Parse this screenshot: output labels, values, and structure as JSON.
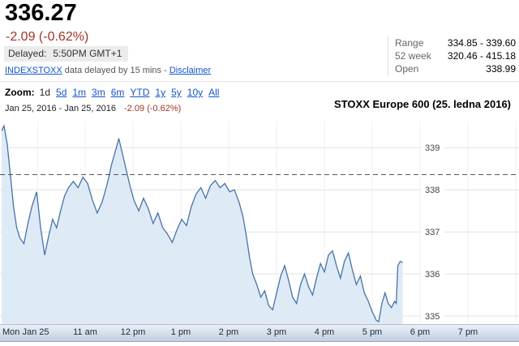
{
  "colors": {
    "negative": "#a23327",
    "link": "#1155cc"
  },
  "header": {
    "price": "336.27",
    "change": "-2.09 (-0.62%)",
    "delayed_label": "Delayed:",
    "delayed_time": "5:50PM GMT+1",
    "exchange_link": "INDEXSTOXX",
    "delay_note": "data delayed by 15 mins -",
    "disclaimer_link": "Disclaimer",
    "stats": [
      {
        "label": "Range",
        "value": "334.85 - 339.60"
      },
      {
        "label": "52 week",
        "value": "320.46 - 415.18"
      },
      {
        "label": "Open",
        "value": "338.99"
      }
    ]
  },
  "toolbar": {
    "zoom_label": "Zoom:",
    "selected": "1d",
    "options": [
      "5d",
      "1m",
      "3m",
      "6m",
      "YTD",
      "1y",
      "5y",
      "10y",
      "All"
    ],
    "date_range": "Jan 25, 2016 - Jan 25, 2016",
    "range_change": "-2.09 (-0.62%)"
  },
  "chart_data": {
    "type": "area",
    "title": "STOXX Europe 600 (25. ledna 2016)",
    "xlabel": "",
    "ylabel": "",
    "last": 336.27,
    "open": 338.99,
    "prev_close": 338.36,
    "day_range": [
      334.85,
      339.6
    ],
    "week52_range": [
      320.46,
      415.18
    ],
    "y_ticks": [
      335,
      336,
      337,
      338,
      339
    ],
    "ylim": [
      334.81,
      339.62
    ],
    "line_color": "#4572a7",
    "fill_color": "#dfeaf7",
    "grid_color": "#e3e3e3",
    "x_unit": "minutes since midnight",
    "axis": {
      "t0": 553,
      "t1": 1204,
      "y_top": 339.62,
      "y_bottom": 334.81
    },
    "day_label": "Mon Jan 25",
    "hour_ticks": [
      {
        "t": 660,
        "label": "11 am"
      },
      {
        "t": 720,
        "label": "12 pm"
      },
      {
        "t": 780,
        "label": "1 pm"
      },
      {
        "t": 840,
        "label": "2 pm"
      },
      {
        "t": 900,
        "label": "3 pm"
      },
      {
        "t": 960,
        "label": "4 pm"
      },
      {
        "t": 1020,
        "label": "5 pm"
      },
      {
        "t": 1080,
        "label": "6 pm"
      },
      {
        "t": 1140,
        "label": "7 pm"
      }
    ],
    "points": [
      [
        555,
        339.4
      ],
      [
        558,
        339.52
      ],
      [
        562,
        339.1
      ],
      [
        566,
        338.35
      ],
      [
        570,
        337.6
      ],
      [
        574,
        337.1
      ],
      [
        578,
        336.85
      ],
      [
        583,
        336.72
      ],
      [
        588,
        337.2
      ],
      [
        593,
        337.6
      ],
      [
        599,
        337.95
      ],
      [
        604,
        337.1
      ],
      [
        609,
        336.45
      ],
      [
        614,
        336.9
      ],
      [
        619,
        337.3
      ],
      [
        624,
        337.1
      ],
      [
        629,
        337.5
      ],
      [
        634,
        337.85
      ],
      [
        639,
        338.05
      ],
      [
        645,
        338.2
      ],
      [
        651,
        338.05
      ],
      [
        657,
        338.3
      ],
      [
        663,
        338.15
      ],
      [
        669,
        337.75
      ],
      [
        675,
        337.45
      ],
      [
        681,
        337.7
      ],
      [
        687,
        338.1
      ],
      [
        693,
        338.6
      ],
      [
        699,
        339.0
      ],
      [
        702,
        339.22
      ],
      [
        706,
        338.9
      ],
      [
        711,
        338.5
      ],
      [
        716,
        338.1
      ],
      [
        721,
        337.75
      ],
      [
        727,
        337.5
      ],
      [
        733,
        337.8
      ],
      [
        739,
        337.55
      ],
      [
        745,
        337.2
      ],
      [
        751,
        337.45
      ],
      [
        757,
        337.1
      ],
      [
        763,
        336.95
      ],
      [
        769,
        336.75
      ],
      [
        775,
        337.05
      ],
      [
        781,
        337.3
      ],
      [
        787,
        337.15
      ],
      [
        793,
        337.6
      ],
      [
        799,
        337.9
      ],
      [
        805,
        338.05
      ],
      [
        811,
        337.8
      ],
      [
        817,
        338.1
      ],
      [
        823,
        338.22
      ],
      [
        829,
        338.05
      ],
      [
        835,
        338.15
      ],
      [
        841,
        337.95
      ],
      [
        847,
        338.0
      ],
      [
        853,
        337.7
      ],
      [
        858,
        337.35
      ],
      [
        862,
        336.9
      ],
      [
        866,
        336.4
      ],
      [
        870,
        336.0
      ],
      [
        875,
        335.75
      ],
      [
        880,
        335.45
      ],
      [
        885,
        335.6
      ],
      [
        890,
        335.25
      ],
      [
        895,
        335.15
      ],
      [
        900,
        335.55
      ],
      [
        905,
        335.95
      ],
      [
        910,
        336.2
      ],
      [
        915,
        335.85
      ],
      [
        920,
        335.45
      ],
      [
        925,
        335.3
      ],
      [
        930,
        335.75
      ],
      [
        935,
        336.0
      ],
      [
        940,
        335.7
      ],
      [
        945,
        335.5
      ],
      [
        950,
        335.9
      ],
      [
        955,
        336.25
      ],
      [
        960,
        336.05
      ],
      [
        965,
        336.45
      ],
      [
        970,
        336.55
      ],
      [
        975,
        336.2
      ],
      [
        980,
        335.9
      ],
      [
        985,
        336.3
      ],
      [
        990,
        336.5
      ],
      [
        995,
        336.1
      ],
      [
        1000,
        335.75
      ],
      [
        1005,
        335.95
      ],
      [
        1010,
        335.55
      ],
      [
        1015,
        335.35
      ],
      [
        1020,
        335.1
      ],
      [
        1025,
        334.9
      ],
      [
        1028,
        334.87
      ],
      [
        1032,
        335.3
      ],
      [
        1036,
        335.55
      ],
      [
        1040,
        335.3
      ],
      [
        1044,
        335.2
      ],
      [
        1048,
        335.35
      ],
      [
        1050,
        335.3
      ],
      [
        1052,
        336.2
      ],
      [
        1055,
        336.3
      ],
      [
        1058,
        336.27
      ]
    ]
  }
}
